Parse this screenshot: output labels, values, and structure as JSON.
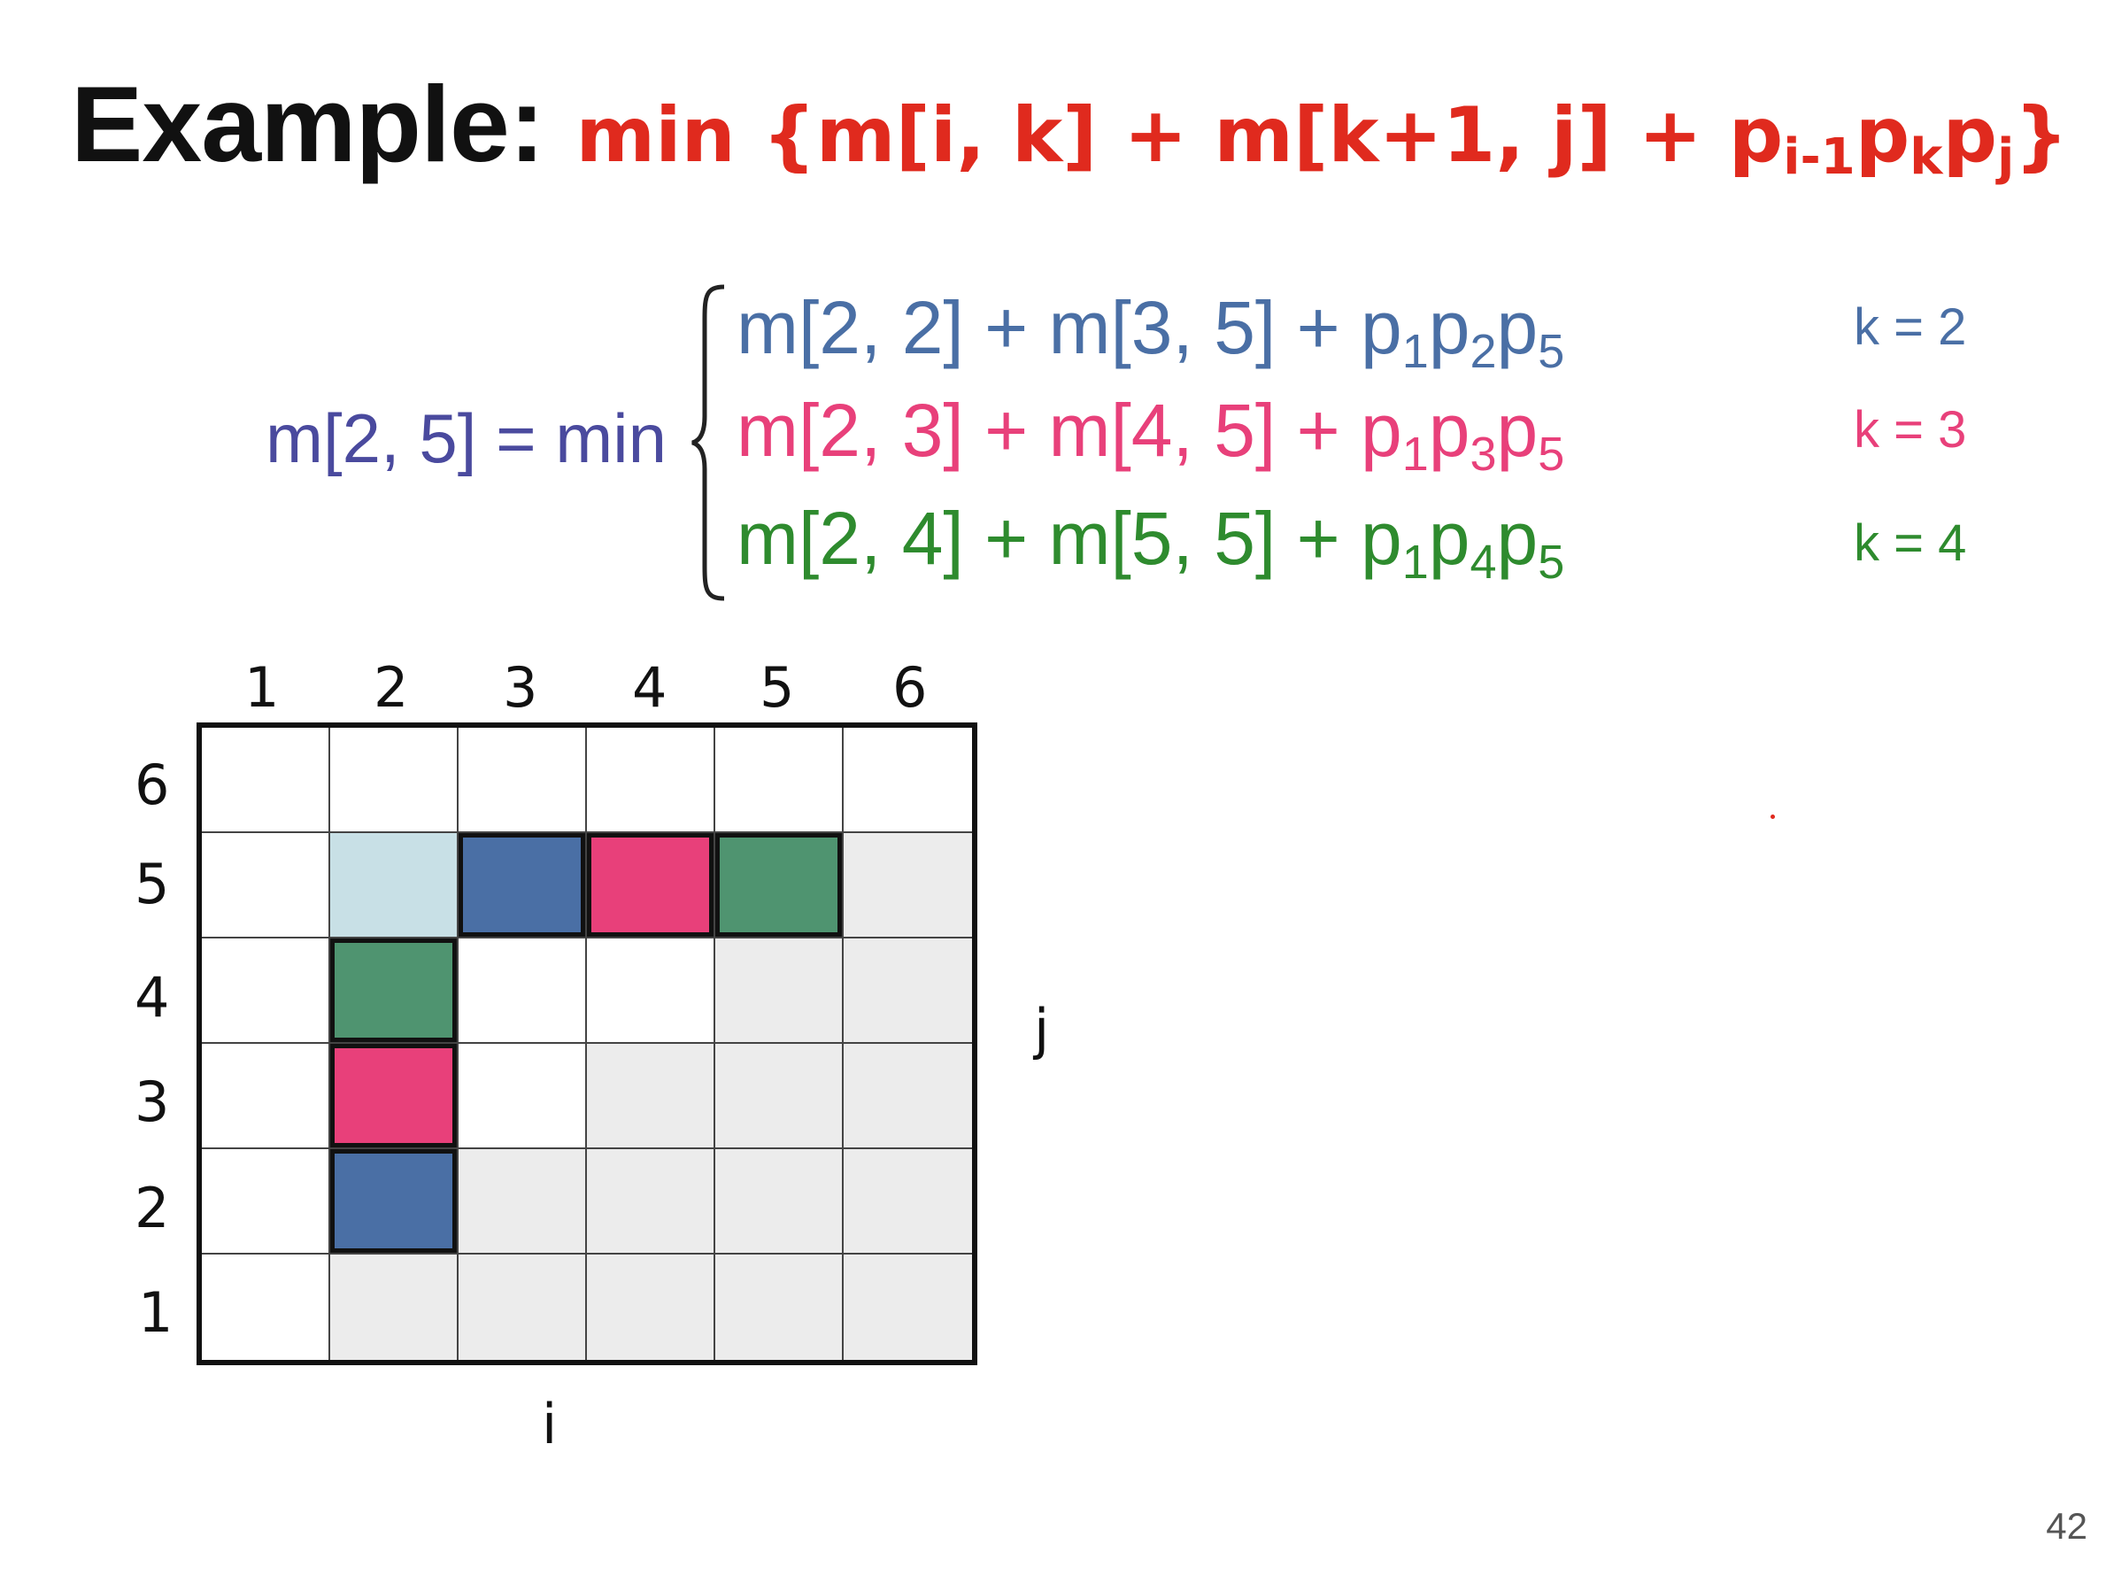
{
  "title": {
    "example": "Example:",
    "formula_main": "min {m[i, k] + m[k+1, j] + p",
    "sub1": "i-1",
    "p2": "p",
    "sub2": "k",
    "p3": "p",
    "sub3": "j",
    "close": "}"
  },
  "equation": {
    "lhs": "m[2, 5] = min",
    "rows": [
      {
        "text": "m[2, 2] + m[3, 5] + p",
        "s1": "1",
        "s2": "2",
        "s3": "5",
        "k": "k = 2",
        "color": "#4a6fa5"
      },
      {
        "text": "m[2, 3] + m[4, 5] + p",
        "s1": "1",
        "s2": "3",
        "s3": "5",
        "k": "k = 3",
        "color": "#e8407a"
      },
      {
        "text": "m[2, 4] + m[5, 5] + p",
        "s1": "1",
        "s2": "4",
        "s3": "5",
        "k": "k = 4",
        "color": "#2e8b2e"
      }
    ],
    "p_letter": "p"
  },
  "grid": {
    "columns": [
      "1",
      "2",
      "3",
      "4",
      "5",
      "6"
    ],
    "rows_top_to_bottom": [
      "6",
      "5",
      "4",
      "3",
      "2",
      "1"
    ],
    "x_label": "i",
    "y_label": "j",
    "colors": {
      "blue": "#4a6fa5",
      "pink": "#e8407a",
      "green": "#4f9470",
      "light_blue": "#c8e0e6",
      "shaded": "#ececec"
    },
    "highlighted_cells": [
      {
        "i": 2,
        "j": 5,
        "color": "light_blue",
        "outlined": false
      },
      {
        "i": 3,
        "j": 5,
        "color": "blue",
        "outlined": true
      },
      {
        "i": 4,
        "j": 5,
        "color": "pink",
        "outlined": true
      },
      {
        "i": 5,
        "j": 5,
        "color": "green",
        "outlined": true
      },
      {
        "i": 2,
        "j": 4,
        "color": "green",
        "outlined": true
      },
      {
        "i": 2,
        "j": 3,
        "color": "pink",
        "outlined": true
      },
      {
        "i": 2,
        "j": 2,
        "color": "blue",
        "outlined": true
      }
    ]
  },
  "page_number": "42"
}
